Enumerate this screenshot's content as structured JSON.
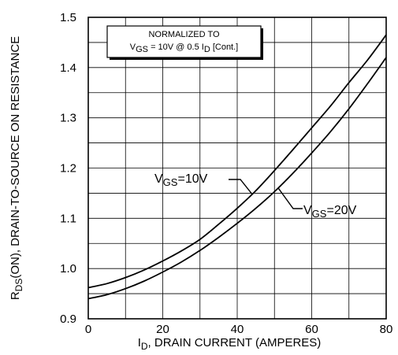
{
  "chart_data": {
    "type": "line",
    "xlabel": {
      "main": "I",
      "sub": "D",
      "rest": ", DRAIN CURRENT (AMPERES)"
    },
    "ylabel": {
      "main": "R",
      "sub": "DS",
      "rest": "(ON), DRAIN-TO-SOURCE ON RESISTANCE"
    },
    "xlim": [
      0,
      80
    ],
    "ylim": [
      0.9,
      1.5
    ],
    "x_ticks": [
      "0",
      "20",
      "40",
      "60",
      "80"
    ],
    "y_ticks": [
      "0.9",
      "1.0",
      "1.1",
      "1.2",
      "1.3",
      "1.4",
      "1.5"
    ],
    "grid": true,
    "annotation": {
      "line1": "NORMALIZED TO",
      "v": "V",
      "v_sub": "GS",
      "mid": " = 10V  @  0.5  I",
      "i_sub": "D",
      "end": " [Cont.]"
    },
    "series": [
      {
        "label_main": "V",
        "label_sub": "GS",
        "label_rest": "=10V",
        "x": [
          0,
          5,
          10,
          15,
          20,
          25,
          30,
          35,
          40,
          45,
          50,
          55,
          60,
          65,
          70,
          75,
          80
        ],
        "y": [
          0.962,
          0.97,
          0.982,
          0.997,
          1.015,
          1.035,
          1.058,
          1.088,
          1.12,
          1.155,
          1.195,
          1.237,
          1.28,
          1.323,
          1.37,
          1.415,
          1.465
        ]
      },
      {
        "label_main": "V",
        "label_sub": "GS",
        "label_rest": "=20V",
        "x": [
          0,
          5,
          10,
          15,
          20,
          25,
          30,
          35,
          40,
          45,
          50,
          55,
          60,
          65,
          70,
          75,
          80
        ],
        "y": [
          0.94,
          0.948,
          0.96,
          0.975,
          0.993,
          1.013,
          1.036,
          1.062,
          1.09,
          1.12,
          1.153,
          1.19,
          1.23,
          1.272,
          1.318,
          1.368,
          1.42
        ]
      }
    ]
  }
}
